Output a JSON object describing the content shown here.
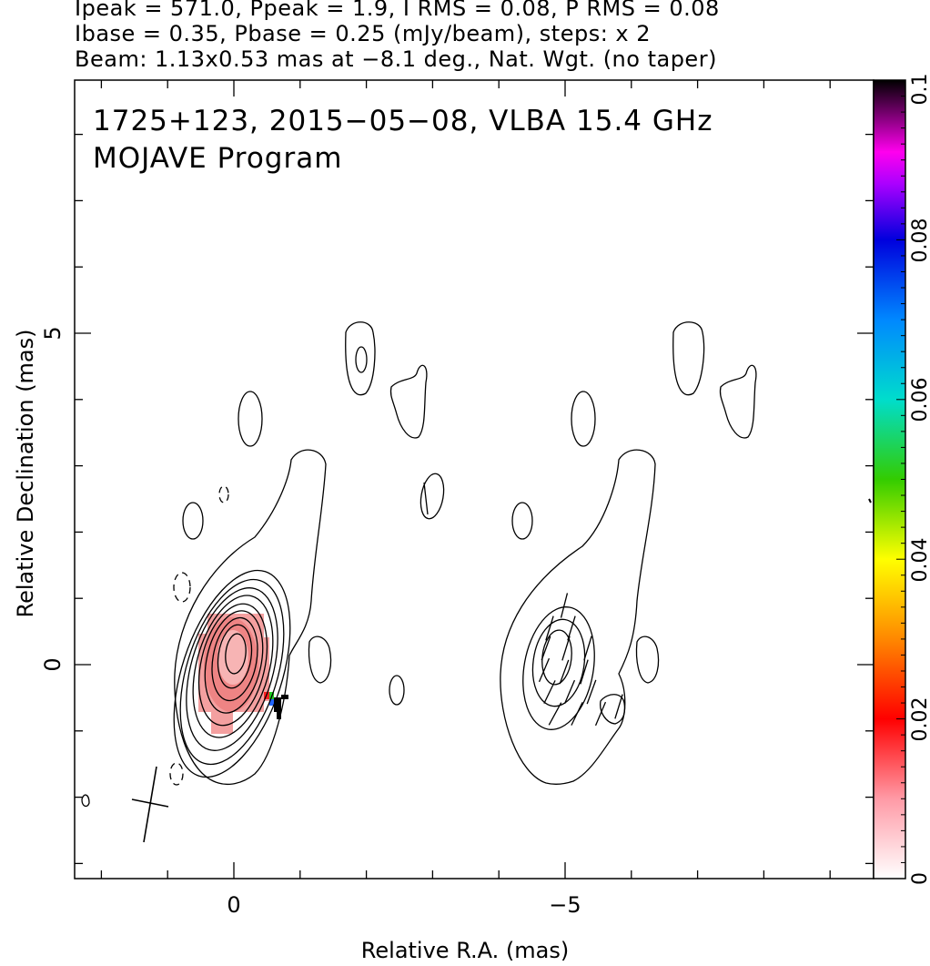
{
  "header": {
    "line1": "Ipeak = 571.0, Ppeak = 1.9, I RMS = 0.08, P RMS = 0.08",
    "line2": "Ibase = 0.35, Pbase = 0.25 (mJy/beam), steps: x 2",
    "line3": "Beam: 1.13x0.53 mas at −8.1 deg., Nat. Wgt. (no taper)"
  },
  "plot": {
    "title_line1": "1725+123, 2015−05−08, VLBA 15.4 GHz",
    "title_line2": "MOJAVE Program"
  },
  "chart_data": {
    "type": "heatmap",
    "description_of_panels": [
      "left: total intensity contours with fractional polarization colour",
      "right: polarized intensity contours with EVPA ticks"
    ],
    "xlabel": "Relative R.A. (mas)",
    "ylabel": "Relative Declination (mas)",
    "xlim": [
      2.4,
      -9.8
    ],
    "ylim": [
      -3.3,
      8.8
    ],
    "x_ticks": [
      0,
      -5
    ],
    "x_tick_labels": [
      "0",
      "−5"
    ],
    "y_ticks": [
      0,
      5
    ],
    "y_tick_labels": [
      "0",
      "5"
    ],
    "colorbar": {
      "range": [
        0,
        0.1
      ],
      "ticks": [
        0,
        0.02,
        0.04,
        0.06,
        0.08,
        0.1
      ],
      "tick_labels": [
        "0",
        "0.02",
        "0.04",
        "0.06",
        "0.08",
        "0.1"
      ]
    },
    "beam": {
      "major_mas": 1.13,
      "minor_mas": 0.53,
      "pa_deg": -8.1
    },
    "contour_base_mJy_per_beam": 0.35,
    "polarization_base_mJy_per_beam": 0.25,
    "contour_step_factor": 2,
    "peak_intensity": 571.0,
    "peak_polarization": 1.9
  },
  "colors": {
    "contour": "#000000",
    "fracpol_fill": "#f4a0a0",
    "fracpol_core": "#ee7a7a"
  }
}
